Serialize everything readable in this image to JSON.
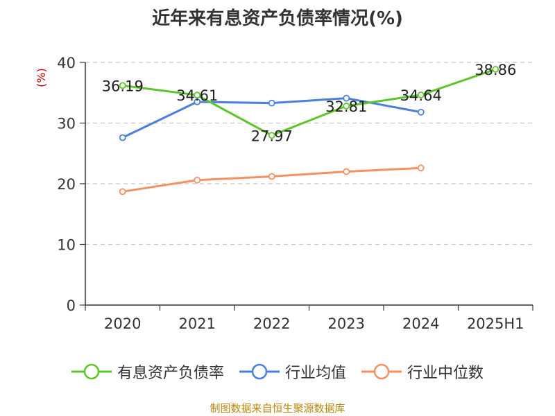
{
  "title": "近年来有息资产负债率情况(%)",
  "y_unit": "(%)",
  "source": "制图数据来自恒生聚源数据库",
  "chart_data": {
    "type": "line",
    "categories": [
      "2020",
      "2021",
      "2022",
      "2023",
      "2024",
      "2025H1"
    ],
    "ylim": [
      0,
      40
    ],
    "yticks": [
      0,
      10,
      20,
      30,
      40
    ],
    "grid": true,
    "legend_position": "bottom",
    "series": [
      {
        "name": "有息资产负债率",
        "color": "#5cc52b",
        "values": [
          36.19,
          34.61,
          27.97,
          32.81,
          34.64,
          38.86
        ],
        "labels": [
          "36.19",
          "34.61",
          "27.97",
          "32.81",
          "34.64",
          "38.86"
        ]
      },
      {
        "name": "行业均值",
        "color": "#4a7fdc",
        "values": [
          27.6,
          33.5,
          33.3,
          34.1,
          31.8,
          null
        ]
      },
      {
        "name": "行业中位数",
        "color": "#f59064",
        "values": [
          18.7,
          20.6,
          21.2,
          22.0,
          22.6,
          null
        ]
      }
    ]
  }
}
